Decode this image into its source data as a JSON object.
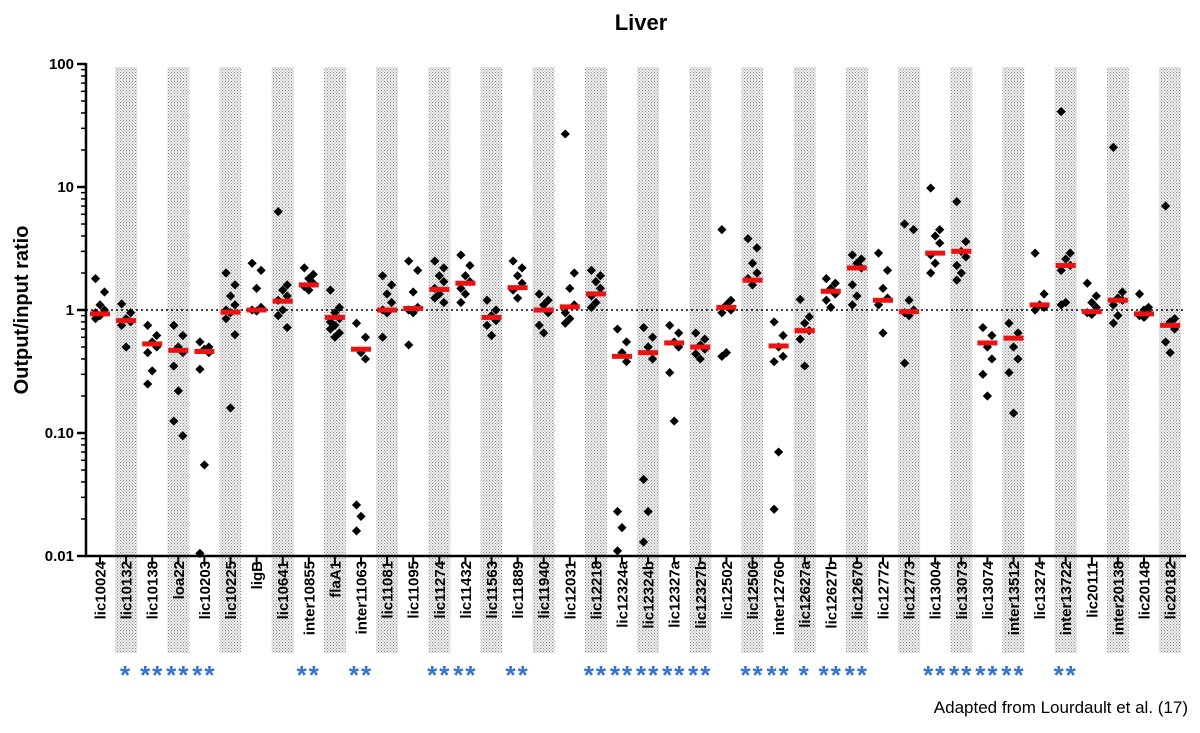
{
  "chart_data": {
    "type": "scatter",
    "title": "Liver",
    "ylabel": "Output/input ratio",
    "xlabel": "",
    "yscale": "log",
    "ylim": [
      0.01,
      100
    ],
    "yticks": [
      0.01,
      0.1,
      1,
      10,
      100
    ],
    "ytick_labels": [
      "0.01",
      "0.10",
      "1",
      "10",
      "100"
    ],
    "reference_line": {
      "y": 1,
      "style": "dotted"
    },
    "marker_color": "#000000",
    "mean_color": "#ee1111",
    "significance_color": "#2f73d8",
    "shaded_color": "#e2e2e2",
    "source_note": "Adapted from Lourdault et al. (17)",
    "categories": [
      {
        "name": "lic10024",
        "shaded": false,
        "sig": "",
        "mean": 0.93,
        "points": [
          1.8,
          1.4,
          1.1,
          1.0,
          0.95,
          0.9,
          0.85
        ]
      },
      {
        "name": "lic10132",
        "shaded": true,
        "sig": "*",
        "mean": 0.82,
        "points": [
          1.12,
          0.95,
          0.85,
          0.8,
          0.75,
          0.5
        ]
      },
      {
        "name": "lic10138",
        "shaded": false,
        "sig": "**",
        "mean": 0.53,
        "points": [
          0.75,
          0.62,
          0.55,
          0.5,
          0.45,
          0.32,
          0.25
        ]
      },
      {
        "name": "loa22",
        "shaded": true,
        "sig": "**",
        "mean": 0.47,
        "points": [
          0.75,
          0.62,
          0.5,
          0.45,
          0.35,
          0.22,
          0.125,
          0.095
        ]
      },
      {
        "name": "lic10203",
        "shaded": false,
        "sig": "**",
        "mean": 0.46,
        "points": [
          0.55,
          0.5,
          0.48,
          0.45,
          0.33,
          0.055,
          0.0105
        ]
      },
      {
        "name": "lic10225",
        "shaded": true,
        "sig": "",
        "mean": 0.96,
        "points": [
          2.0,
          1.6,
          1.3,
          1.1,
          1.0,
          0.95,
          0.85,
          0.63,
          0.16
        ]
      },
      {
        "name": "ligB",
        "shaded": false,
        "sig": "",
        "mean": 1.0,
        "points": [
          2.4,
          2.1,
          1.5,
          1.05,
          1.0,
          0.98
        ]
      },
      {
        "name": "lic10641",
        "shaded": true,
        "sig": "",
        "mean": 1.18,
        "points": [
          6.3,
          1.6,
          1.45,
          1.3,
          1.2,
          1.0,
          0.9,
          0.72
        ]
      },
      {
        "name": "inter10855",
        "shaded": false,
        "sig": "**",
        "mean": 1.6,
        "points": [
          2.2,
          1.95,
          1.8,
          1.65,
          1.55,
          1.45
        ]
      },
      {
        "name": "flaA1",
        "shaded": true,
        "sig": "",
        "mean": 0.87,
        "points": [
          1.45,
          1.05,
          0.95,
          0.85,
          0.8,
          0.75,
          0.7,
          0.65,
          0.6
        ]
      },
      {
        "name": "inter11063",
        "shaded": false,
        "sig": "**",
        "mean": 0.48,
        "points": [
          0.78,
          0.6,
          0.45,
          0.4,
          0.026,
          0.021,
          0.016
        ]
      },
      {
        "name": "lic11081",
        "shaded": true,
        "sig": "",
        "mean": 1.0,
        "points": [
          1.9,
          1.6,
          1.35,
          1.15,
          1.0,
          0.95,
          0.6
        ]
      },
      {
        "name": "lic11095",
        "shaded": false,
        "sig": "",
        "mean": 1.03,
        "points": [
          2.5,
          2.1,
          1.4,
          1.05,
          1.0,
          0.95,
          0.52
        ]
      },
      {
        "name": "lic11274",
        "shaded": true,
        "sig": "**",
        "mean": 1.47,
        "points": [
          2.5,
          2.2,
          1.9,
          1.7,
          1.5,
          1.35,
          1.25,
          1.15
        ]
      },
      {
        "name": "lic11432",
        "shaded": false,
        "sig": "**",
        "mean": 1.65,
        "points": [
          2.8,
          2.3,
          1.9,
          1.7,
          1.5,
          1.35,
          1.15
        ]
      },
      {
        "name": "lic11563",
        "shaded": true,
        "sig": "",
        "mean": 0.87,
        "points": [
          1.2,
          1.0,
          0.9,
          0.82,
          0.75,
          0.62
        ]
      },
      {
        "name": "lic11889",
        "shaded": false,
        "sig": "**",
        "mean": 1.52,
        "points": [
          2.5,
          2.2,
          1.9,
          1.65,
          1.45,
          1.25
        ]
      },
      {
        "name": "lic11940",
        "shaded": true,
        "sig": "",
        "mean": 1.0,
        "points": [
          1.35,
          1.2,
          1.1,
          0.95,
          0.75,
          0.65
        ]
      },
      {
        "name": "lic12031",
        "shaded": false,
        "sig": "",
        "mean": 1.06,
        "points": [
          27.0,
          2.0,
          1.5,
          1.1,
          0.95,
          0.85,
          0.78
        ]
      },
      {
        "name": "lic12218",
        "shaded": true,
        "sig": "**",
        "mean": 1.35,
        "points": [
          2.1,
          1.9,
          1.7,
          1.5,
          1.3,
          1.15,
          1.05
        ]
      },
      {
        "name": "lic12324a",
        "shaded": false,
        "sig": "**",
        "mean": 0.42,
        "points": [
          0.7,
          0.55,
          0.45,
          0.38,
          0.023,
          0.017,
          0.011
        ]
      },
      {
        "name": "lic12324b",
        "shaded": true,
        "sig": "**",
        "mean": 0.45,
        "points": [
          0.72,
          0.6,
          0.5,
          0.4,
          0.042,
          0.023,
          0.013
        ]
      },
      {
        "name": "lic12327a",
        "shaded": false,
        "sig": "**",
        "mean": 0.54,
        "points": [
          0.75,
          0.65,
          0.55,
          0.5,
          0.31,
          0.125
        ]
      },
      {
        "name": "lic12327b",
        "shaded": true,
        "sig": "**",
        "mean": 0.5,
        "points": [
          0.65,
          0.58,
          0.52,
          0.48,
          0.44,
          0.4
        ]
      },
      {
        "name": "lic12502",
        "shaded": false,
        "sig": "",
        "mean": 1.05,
        "points": [
          4.5,
          1.2,
          1.1,
          1.0,
          0.95,
          0.45,
          0.42
        ]
      },
      {
        "name": "lic12506",
        "shaded": true,
        "sig": "**",
        "mean": 1.75,
        "points": [
          3.8,
          3.2,
          2.4,
          2.0,
          1.8,
          1.6
        ]
      },
      {
        "name": "inter12760",
        "shaded": false,
        "sig": "**",
        "mean": 0.51,
        "points": [
          0.8,
          0.62,
          0.5,
          0.42,
          0.38,
          0.07,
          0.024
        ]
      },
      {
        "name": "lic12627a",
        "shaded": true,
        "sig": "*",
        "mean": 0.68,
        "points": [
          1.22,
          0.88,
          0.78,
          0.68,
          0.58,
          0.35
        ]
      },
      {
        "name": "lic12627b",
        "shaded": false,
        "sig": "**",
        "mean": 1.42,
        "points": [
          1.8,
          1.65,
          1.5,
          1.35,
          1.2,
          1.05
        ]
      },
      {
        "name": "lic12670",
        "shaded": true,
        "sig": "**",
        "mean": 2.2,
        "points": [
          2.8,
          2.6,
          2.4,
          2.2,
          1.6,
          1.3,
          1.1
        ]
      },
      {
        "name": "lic12772",
        "shaded": false,
        "sig": "",
        "mean": 1.2,
        "points": [
          2.9,
          2.1,
          1.5,
          1.25,
          1.1,
          0.65
        ]
      },
      {
        "name": "lic12773",
        "shaded": true,
        "sig": "",
        "mean": 0.97,
        "points": [
          5.0,
          4.5,
          1.2,
          1.0,
          0.95,
          0.9,
          0.37
        ]
      },
      {
        "name": "lic13004",
        "shaded": false,
        "sig": "**",
        "mean": 2.9,
        "points": [
          9.8,
          4.5,
          4.0,
          3.5,
          2.8,
          2.4,
          2.0
        ]
      },
      {
        "name": "lic13073",
        "shaded": true,
        "sig": "**",
        "mean": 3.0,
        "points": [
          7.6,
          3.6,
          3.0,
          2.7,
          2.3,
          2.0,
          1.75
        ]
      },
      {
        "name": "lic13074",
        "shaded": false,
        "sig": "**",
        "mean": 0.54,
        "points": [
          0.72,
          0.62,
          0.5,
          0.4,
          0.3,
          0.2
        ]
      },
      {
        "name": "inter13512",
        "shaded": true,
        "sig": "**",
        "mean": 0.59,
        "points": [
          0.78,
          0.65,
          0.5,
          0.4,
          0.31,
          0.145
        ]
      },
      {
        "name": "lic13274",
        "shaded": false,
        "sig": "",
        "mean": 1.1,
        "points": [
          2.9,
          1.35,
          1.1,
          1.05,
          1.0
        ]
      },
      {
        "name": "inter13722",
        "shaded": true,
        "sig": "**",
        "mean": 2.3,
        "points": [
          41.0,
          2.9,
          2.6,
          2.3,
          2.1,
          1.15,
          1.1
        ]
      },
      {
        "name": "lic20111",
        "shaded": false,
        "sig": "",
        "mean": 0.97,
        "points": [
          1.65,
          1.3,
          1.15,
          1.05,
          0.95,
          0.92
        ]
      },
      {
        "name": "inter20138",
        "shaded": true,
        "sig": "",
        "mean": 1.2,
        "points": [
          21.0,
          1.4,
          1.25,
          1.2,
          1.1,
          0.9,
          0.78
        ]
      },
      {
        "name": "lic20148",
        "shaded": false,
        "sig": "",
        "mean": 0.93,
        "points": [
          1.35,
          1.05,
          1.0,
          0.95,
          0.9,
          0.87
        ]
      },
      {
        "name": "lic20182",
        "shaded": true,
        "sig": "",
        "mean": 0.75,
        "points": [
          7.0,
          0.85,
          0.8,
          0.7,
          0.55,
          0.45
        ]
      }
    ]
  }
}
